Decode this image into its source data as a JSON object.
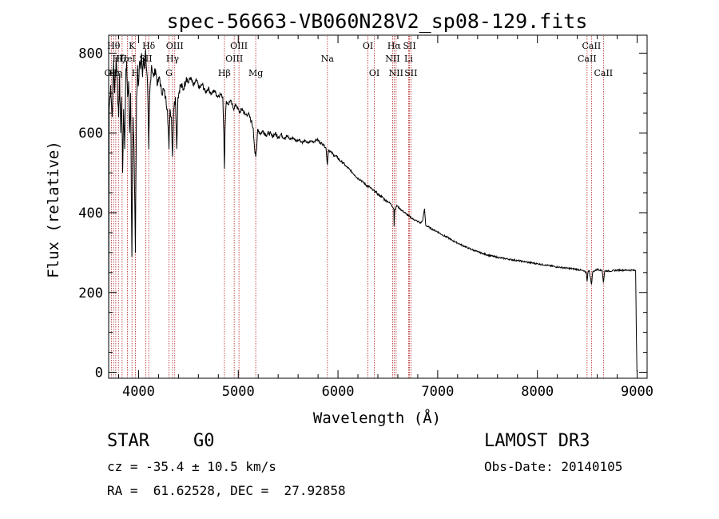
{
  "chart_data": {
    "type": "line",
    "title": "spec-56663-VB060N28V2_sp08-129.fits",
    "xlabel": "Wavelength (Å)",
    "ylabel": "Flux (relative)",
    "xlim": [
      3700,
      9100
    ],
    "ylim": [
      -15,
      845
    ],
    "x_ticks": [
      4000,
      5000,
      6000,
      7000,
      8000,
      9000
    ],
    "x_tick_labels": [
      "4000",
      "5000",
      "6000",
      "7000",
      "8000",
      "9000"
    ],
    "y_ticks": [
      0,
      200,
      400,
      600,
      800
    ],
    "y_tick_labels": [
      "0",
      "200",
      "400",
      "600",
      "800"
    ],
    "line_color": "#000000",
    "marker_color": "#b22222",
    "series": [
      {
        "name": "flux",
        "points": [
          [
            3700,
            60
          ],
          [
            3705,
            660
          ],
          [
            3720,
            720
          ],
          [
            3735,
            640
          ],
          [
            3750,
            780
          ],
          [
            3760,
            700
          ],
          [
            3775,
            790
          ],
          [
            3790,
            710
          ],
          [
            3800,
            640
          ],
          [
            3810,
            750
          ],
          [
            3820,
            600
          ],
          [
            3830,
            690
          ],
          [
            3840,
            500
          ],
          [
            3850,
            660
          ],
          [
            3860,
            560
          ],
          [
            3870,
            720
          ],
          [
            3880,
            780
          ],
          [
            3890,
            690
          ],
          [
            3900,
            730
          ],
          [
            3910,
            600
          ],
          [
            3920,
            700
          ],
          [
            3933,
            290
          ],
          [
            3945,
            640
          ],
          [
            3955,
            560
          ],
          [
            3968,
            300
          ],
          [
            3980,
            690
          ],
          [
            3990,
            770
          ],
          [
            4000,
            720
          ],
          [
            4010,
            780
          ],
          [
            4020,
            760
          ],
          [
            4030,
            800
          ],
          [
            4040,
            740
          ],
          [
            4050,
            790
          ],
          [
            4060,
            760
          ],
          [
            4070,
            810
          ],
          [
            4080,
            760
          ],
          [
            4090,
            720
          ],
          [
            4102,
            560
          ],
          [
            4112,
            700
          ],
          [
            4130,
            770
          ],
          [
            4150,
            740
          ],
          [
            4170,
            760
          ],
          [
            4190,
            720
          ],
          [
            4210,
            740
          ],
          [
            4230,
            700
          ],
          [
            4250,
            710
          ],
          [
            4270,
            690
          ],
          [
            4290,
            660
          ],
          [
            4305,
            560
          ],
          [
            4315,
            660
          ],
          [
            4330,
            640
          ],
          [
            4340,
            540
          ],
          [
            4352,
            660
          ],
          [
            4370,
            690
          ],
          [
            4383,
            560
          ],
          [
            4395,
            690
          ],
          [
            4420,
            720
          ],
          [
            4450,
            710
          ],
          [
            4480,
            740
          ],
          [
            4500,
            725
          ],
          [
            4520,
            740
          ],
          [
            4550,
            718
          ],
          [
            4580,
            732
          ],
          [
            4610,
            712
          ],
          [
            4640,
            722
          ],
          [
            4670,
            702
          ],
          [
            4700,
            712
          ],
          [
            4730,
            697
          ],
          [
            4760,
            707
          ],
          [
            4790,
            692
          ],
          [
            4820,
            697
          ],
          [
            4845,
            690
          ],
          [
            4855,
            600
          ],
          [
            4861,
            510
          ],
          [
            4867,
            610
          ],
          [
            4880,
            680
          ],
          [
            4900,
            672
          ],
          [
            4920,
            682
          ],
          [
            4950,
            662
          ],
          [
            4980,
            670
          ],
          [
            5010,
            652
          ],
          [
            5040,
            660
          ],
          [
            5070,
            645
          ],
          [
            5100,
            648
          ],
          [
            5130,
            630
          ],
          [
            5150,
            612
          ],
          [
            5167,
            550
          ],
          [
            5175,
            540
          ],
          [
            5184,
            560
          ],
          [
            5195,
            610
          ],
          [
            5220,
            598
          ],
          [
            5250,
            605
          ],
          [
            5280,
            595
          ],
          [
            5310,
            600
          ],
          [
            5340,
            592
          ],
          [
            5370,
            598
          ],
          [
            5400,
            590
          ],
          [
            5430,
            596
          ],
          [
            5460,
            588
          ],
          [
            5490,
            592
          ],
          [
            5520,
            584
          ],
          [
            5550,
            588
          ],
          [
            5580,
            580
          ],
          [
            5610,
            584
          ],
          [
            5640,
            576
          ],
          [
            5670,
            580
          ],
          [
            5700,
            574
          ],
          [
            5730,
            580
          ],
          [
            5760,
            578
          ],
          [
            5790,
            584
          ],
          [
            5820,
            576
          ],
          [
            5850,
            572
          ],
          [
            5880,
            562
          ],
          [
            5893,
            520
          ],
          [
            5905,
            558
          ],
          [
            5930,
            552
          ],
          [
            5960,
            544
          ],
          [
            5990,
            540
          ],
          [
            6020,
            530
          ],
          [
            6050,
            526
          ],
          [
            6080,
            516
          ],
          [
            6110,
            510
          ],
          [
            6140,
            502
          ],
          [
            6170,
            494
          ],
          [
            6200,
            486
          ],
          [
            6230,
            482
          ],
          [
            6260,
            474
          ],
          [
            6290,
            468
          ],
          [
            6320,
            464
          ],
          [
            6350,
            456
          ],
          [
            6380,
            452
          ],
          [
            6410,
            444
          ],
          [
            6440,
            440
          ],
          [
            6470,
            432
          ],
          [
            6500,
            428
          ],
          [
            6530,
            422
          ],
          [
            6560,
            410
          ],
          [
            6563,
            365
          ],
          [
            6568,
            405
          ],
          [
            6590,
            418
          ],
          [
            6620,
            410
          ],
          [
            6650,
            404
          ],
          [
            6680,
            398
          ],
          [
            6710,
            392
          ],
          [
            6740,
            386
          ],
          [
            6770,
            382
          ],
          [
            6800,
            378
          ],
          [
            6830,
            374
          ],
          [
            6850,
            382
          ],
          [
            6868,
            410
          ],
          [
            6880,
            368
          ],
          [
            6910,
            364
          ],
          [
            6950,
            358
          ],
          [
            7000,
            352
          ],
          [
            7050,
            344
          ],
          [
            7100,
            338
          ],
          [
            7150,
            330
          ],
          [
            7200,
            324
          ],
          [
            7300,
            312
          ],
          [
            7400,
            302
          ],
          [
            7500,
            294
          ],
          [
            7600,
            288
          ],
          [
            7700,
            284
          ],
          [
            7800,
            280
          ],
          [
            7900,
            276
          ],
          [
            8000,
            272
          ],
          [
            8100,
            268
          ],
          [
            8200,
            264
          ],
          [
            8300,
            261
          ],
          [
            8400,
            258
          ],
          [
            8450,
            255
          ],
          [
            8490,
            250
          ],
          [
            8498,
            228
          ],
          [
            8506,
            250
          ],
          [
            8520,
            256
          ],
          [
            8542,
            220
          ],
          [
            8555,
            252
          ],
          [
            8600,
            258
          ],
          [
            8650,
            255
          ],
          [
            8662,
            225
          ],
          [
            8675,
            254
          ],
          [
            8750,
            254
          ],
          [
            8800,
            256
          ],
          [
            8850,
            256
          ],
          [
            8900,
            256
          ],
          [
            8950,
            256
          ],
          [
            8985,
            255
          ],
          [
            8992,
            100
          ],
          [
            8998,
            0
          ]
        ]
      }
    ],
    "line_markers": [
      {
        "wavelength": 3727,
        "label": "OII",
        "row": 3
      },
      {
        "wavelength": 3750,
        "label": "Hθ",
        "row": 1
      },
      {
        "wavelength": 3771,
        "label": "Hη",
        "row": 3
      },
      {
        "wavelength": 3798,
        "label": "Hζ",
        "row": 2
      },
      {
        "wavelength": 3835,
        "label": "Hε",
        "row": 2
      },
      {
        "wavelength": 3889,
        "label": "HeI",
        "row": 2
      },
      {
        "wavelength": 3934,
        "label": "K",
        "row": 1
      },
      {
        "wavelength": 3969,
        "label": "H",
        "row": 3
      },
      {
        "wavelength": 4072,
        "label": "SII",
        "row": 2
      },
      {
        "wavelength": 4102,
        "label": "Hδ",
        "row": 1
      },
      {
        "wavelength": 4305,
        "label": "G",
        "row": 3
      },
      {
        "wavelength": 4341,
        "label": "Hγ",
        "row": 2
      },
      {
        "wavelength": 4363,
        "label": "OIII",
        "row": 1
      },
      {
        "wavelength": 4861,
        "label": "Hβ",
        "row": 3
      },
      {
        "wavelength": 4959,
        "label": "OIII",
        "row": 2
      },
      {
        "wavelength": 5007,
        "label": "OIII",
        "row": 1
      },
      {
        "wavelength": 5175,
        "label": "Mg",
        "row": 3
      },
      {
        "wavelength": 5894,
        "label": "Na",
        "row": 2
      },
      {
        "wavelength": 6300,
        "label": "OI",
        "row": 1
      },
      {
        "wavelength": 6364,
        "label": "OI",
        "row": 3
      },
      {
        "wavelength": 6548,
        "label": "NII",
        "row": 2
      },
      {
        "wavelength": 6563,
        "label": "Hα",
        "row": 1
      },
      {
        "wavelength": 6583,
        "label": "NII",
        "row": 3
      },
      {
        "wavelength": 6708,
        "label": "Li",
        "row": 2
      },
      {
        "wavelength": 6717,
        "label": "SII",
        "row": 1
      },
      {
        "wavelength": 6731,
        "label": "SII",
        "row": 3
      },
      {
        "wavelength": 8498,
        "label": "CaII",
        "row": 2
      },
      {
        "wavelength": 8542,
        "label": "CaII",
        "row": 1
      },
      {
        "wavelength": 8662,
        "label": "CaII",
        "row": 3
      }
    ]
  },
  "footer": {
    "class_label": "STAR",
    "subclass": "G0",
    "survey": "LAMOST DR3",
    "redshift": "cz = -35.4 ± 10.5 km/s",
    "obs_date": "Obs-Date: 20140105",
    "coordinates": "RA =  61.62528, DEC =  27.92858"
  }
}
